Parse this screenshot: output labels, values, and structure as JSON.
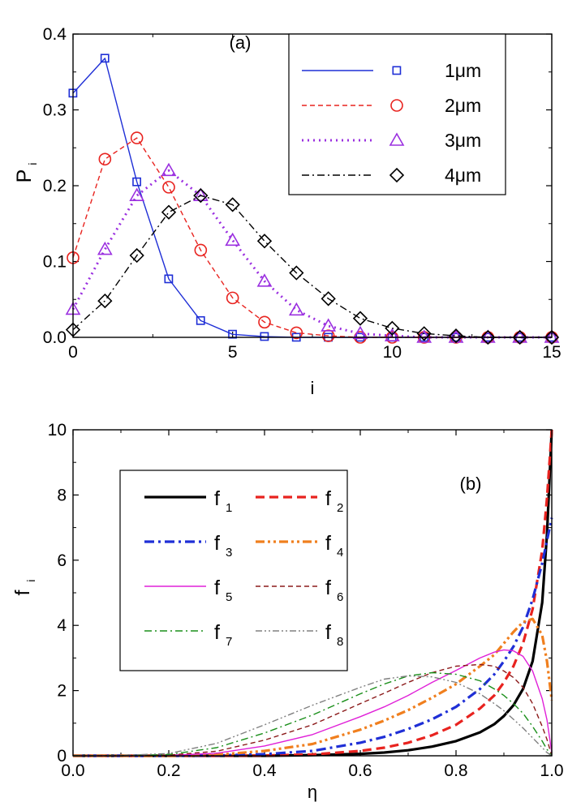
{
  "chart_data": [
    {
      "type": "line",
      "panel_label": "(a)",
      "xlabel": "i",
      "ylabel": "P",
      "ylabel_sub": "i",
      "xlim": [
        0,
        15
      ],
      "ylim": [
        0,
        0.4
      ],
      "xticks": [
        0,
        5,
        10,
        15
      ],
      "yticks": [
        0.0,
        0.1,
        0.2,
        0.3,
        0.4
      ],
      "xtick_labels": [
        "0",
        "5",
        "10",
        "15"
      ],
      "ytick_labels": [
        "0.0",
        "0.1",
        "0.2",
        "0.3",
        "0.4"
      ],
      "legend_position": "top-right",
      "x": [
        0,
        1,
        2,
        3,
        4,
        5,
        6,
        7,
        8,
        9,
        10,
        11,
        12,
        13,
        14,
        15
      ],
      "series": [
        {
          "name": "1μm",
          "color": "#1f2fd6",
          "line": "solid",
          "marker": "square",
          "values": [
            0.322,
            0.368,
            0.205,
            0.077,
            0.022,
            0.004,
            0.001,
            0,
            0,
            0,
            0,
            0,
            0,
            0,
            0,
            0
          ]
        },
        {
          "name": "2μm",
          "color": "#e8231f",
          "line": "dashed",
          "marker": "circle",
          "values": [
            0.105,
            0.235,
            0.263,
            0.198,
            0.115,
            0.052,
            0.02,
            0.006,
            0.002,
            0,
            0,
            0,
            0,
            0,
            0,
            0
          ]
        },
        {
          "name": "3μm",
          "color": "#9b30e0",
          "line": "dotted",
          "marker": "triangle",
          "values": [
            0.037,
            0.116,
            0.187,
            0.22,
            0.187,
            0.128,
            0.074,
            0.036,
            0.015,
            0.005,
            0.002,
            0,
            0,
            0,
            0,
            0
          ]
        },
        {
          "name": "4μm",
          "color": "#000000",
          "line": "dashdot",
          "marker": "diamond",
          "values": [
            0.01,
            0.048,
            0.108,
            0.165,
            0.187,
            0.175,
            0.127,
            0.085,
            0.051,
            0.025,
            0.012,
            0.005,
            0.002,
            0,
            0,
            0
          ]
        }
      ]
    },
    {
      "type": "line",
      "panel_label": "(b)",
      "xlabel": "η",
      "ylabel": "f",
      "ylabel_sub": "i",
      "xlim": [
        0,
        1
      ],
      "ylim": [
        0,
        10
      ],
      "xticks": [
        0.0,
        0.2,
        0.4,
        0.6,
        0.8,
        1.0
      ],
      "yticks": [
        0,
        2,
        4,
        6,
        8,
        10
      ],
      "xtick_labels": [
        "0.0",
        "0.2",
        "0.4",
        "0.6",
        "0.8",
        "1.0"
      ],
      "ytick_labels": [
        "0",
        "2",
        "4",
        "6",
        "8",
        "10"
      ],
      "legend_position": "top-left",
      "x": [
        0,
        0.1,
        0.2,
        0.3,
        0.4,
        0.5,
        0.6,
        0.65,
        0.7,
        0.75,
        0.8,
        0.85,
        0.88,
        0.9,
        0.92,
        0.94,
        0.96,
        0.98,
        0.99,
        1.0
      ],
      "series": [
        {
          "name": "f",
          "sub": "1",
          "color": "#000000",
          "line": "solid-thick",
          "values": [
            0,
            0,
            0,
            0,
            0,
            0.02,
            0.06,
            0.1,
            0.17,
            0.28,
            0.45,
            0.72,
            0.97,
            1.22,
            1.55,
            2.05,
            2.9,
            4.7,
            6.8,
            10.0
          ]
        },
        {
          "name": "f",
          "sub": "2",
          "color": "#e8231f",
          "line": "dashed-thick",
          "values": [
            0,
            0,
            0,
            0,
            0.01,
            0.04,
            0.15,
            0.25,
            0.4,
            0.63,
            0.95,
            1.45,
            1.85,
            2.25,
            2.75,
            3.45,
            4.5,
            6.3,
            7.9,
            10.0
          ]
        },
        {
          "name": "f",
          "sub": "3",
          "color": "#1f2fd6",
          "line": "dashdot-thick",
          "values": [
            0,
            0,
            0,
            0.01,
            0.05,
            0.15,
            0.4,
            0.58,
            0.82,
            1.12,
            1.5,
            2.05,
            2.5,
            2.9,
            3.35,
            3.95,
            4.8,
            5.9,
            6.6,
            7.3
          ]
        },
        {
          "name": "f",
          "sub": "4",
          "color": "#f07f1e",
          "line": "dashdotdot-thick",
          "values": [
            0,
            0,
            0,
            0.03,
            0.15,
            0.36,
            0.8,
            1.08,
            1.4,
            1.78,
            2.2,
            2.75,
            3.1,
            3.45,
            3.8,
            4.1,
            4.2,
            3.7,
            2.9,
            1.7
          ]
        },
        {
          "name": "f",
          "sub": "5",
          "color": "#e020d8",
          "line": "solid",
          "values": [
            0,
            0,
            0.01,
            0.08,
            0.3,
            0.65,
            1.2,
            1.5,
            1.85,
            2.25,
            2.62,
            3.0,
            3.18,
            3.25,
            3.22,
            3.05,
            2.6,
            1.75,
            1.1,
            0.1
          ]
        },
        {
          "name": "f",
          "sub": "6",
          "color": "#8b1a1a",
          "line": "dashed",
          "values": [
            0,
            0,
            0.02,
            0.14,
            0.48,
            0.95,
            1.6,
            1.92,
            2.25,
            2.55,
            2.75,
            2.8,
            2.75,
            2.6,
            2.4,
            2.1,
            1.6,
            0.9,
            0.5,
            0
          ]
        },
        {
          "name": "f",
          "sub": "7",
          "color": "#1a8f1a",
          "line": "dashdot",
          "values": [
            0,
            0,
            0.04,
            0.25,
            0.7,
            1.25,
            1.9,
            2.2,
            2.45,
            2.55,
            2.5,
            2.3,
            2.05,
            1.85,
            1.6,
            1.3,
            0.9,
            0.45,
            0.2,
            0
          ]
        },
        {
          "name": "f",
          "sub": "8",
          "color": "#808080",
          "line": "dashdotdot",
          "values": [
            0,
            0.01,
            0.07,
            0.38,
            0.95,
            1.55,
            2.1,
            2.35,
            2.45,
            2.42,
            2.25,
            1.9,
            1.6,
            1.38,
            1.12,
            0.85,
            0.55,
            0.25,
            0.1,
            0
          ]
        }
      ]
    }
  ]
}
